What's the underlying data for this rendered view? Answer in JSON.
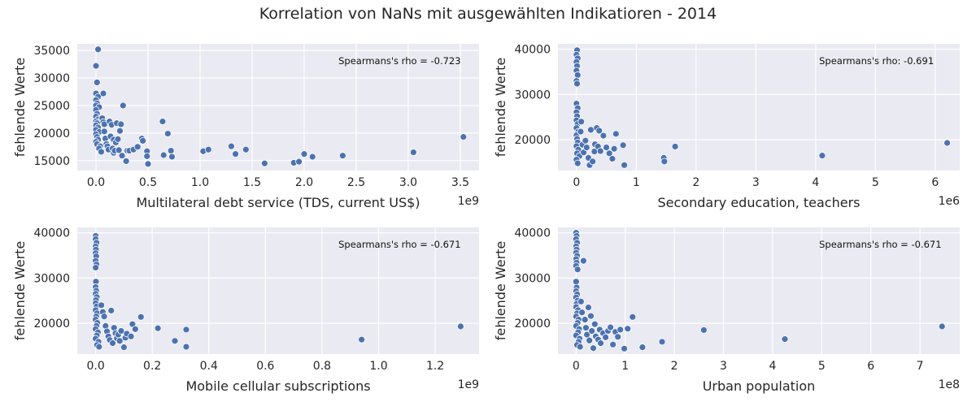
{
  "suptitle": "Korrelation von NaNs mit ausgewählten Indikatioren - 2014",
  "colors": {
    "background": "#eaeaf2",
    "grid": "#ffffff",
    "marker": "#4c72b0",
    "text": "#262626"
  },
  "chart_data": [
    {
      "type": "scatter",
      "title": "",
      "xlabel": "Multilateral debt service (TDS, current US$)",
      "ylabel": "fehlende Werte",
      "x_offset_label": "1e9",
      "annotation": "Spearmans's rho = -0.723",
      "xlim": [
        -0.18,
        3.68
      ],
      "ylim": [
        13200,
        36200
      ],
      "xticks": [
        0.0,
        0.5,
        1.0,
        1.5,
        2.0,
        2.5,
        3.0,
        3.5
      ],
      "xtick_labels": [
        "0.0",
        "0.5",
        "1.0",
        "1.5",
        "2.0",
        "2.5",
        "3.0",
        "3.5"
      ],
      "yticks": [
        15000,
        20000,
        25000,
        30000,
        35000
      ],
      "ytick_labels": [
        "15000",
        "20000",
        "25000",
        "30000",
        "35000"
      ],
      "grid": true,
      "points": [
        [
          0.02,
          35200
        ],
        [
          0.0,
          32200
        ],
        [
          0.01,
          29200
        ],
        [
          0.0,
          27200
        ],
        [
          0.02,
          26600
        ],
        [
          0.0,
          26000
        ],
        [
          0.01,
          25400
        ],
        [
          0.0,
          25000
        ],
        [
          0.03,
          24700
        ],
        [
          0.0,
          24200
        ],
        [
          0.01,
          23500
        ],
        [
          0.0,
          23000
        ],
        [
          0.02,
          22500
        ],
        [
          0.0,
          22100
        ],
        [
          0.01,
          21800
        ],
        [
          0.0,
          21400
        ],
        [
          0.02,
          21000
        ],
        [
          0.0,
          20600
        ],
        [
          0.03,
          20200
        ],
        [
          0.0,
          19800
        ],
        [
          0.01,
          19300
        ],
        [
          0.02,
          18800
        ],
        [
          0.0,
          18400
        ],
        [
          0.01,
          18000
        ],
        [
          0.04,
          17600
        ],
        [
          0.03,
          17200
        ],
        [
          0.05,
          16600
        ],
        [
          0.06,
          22700
        ],
        [
          0.07,
          22000
        ],
        [
          0.08,
          21600
        ],
        [
          0.08,
          20300
        ],
        [
          0.09,
          19000
        ],
        [
          0.1,
          18000
        ],
        [
          0.11,
          17600
        ],
        [
          0.12,
          17000
        ],
        [
          0.13,
          22100
        ],
        [
          0.14,
          19400
        ],
        [
          0.15,
          21500
        ],
        [
          0.16,
          17200
        ],
        [
          0.17,
          16400
        ],
        [
          0.17,
          18800
        ],
        [
          0.18,
          16800
        ],
        [
          0.19,
          18300
        ],
        [
          0.2,
          21800
        ],
        [
          0.21,
          18900
        ],
        [
          0.22,
          16900
        ],
        [
          0.23,
          20400
        ],
        [
          0.24,
          21600
        ],
        [
          0.25,
          15900
        ],
        [
          0.26,
          25000
        ],
        [
          0.07,
          27200
        ],
        [
          0.3,
          16800
        ],
        [
          0.32,
          16800
        ],
        [
          0.29,
          14900
        ],
        [
          0.36,
          17000
        ],
        [
          0.4,
          17500
        ],
        [
          0.44,
          19000
        ],
        [
          0.45,
          18600
        ],
        [
          0.49,
          16700
        ],
        [
          0.49,
          15800
        ],
        [
          0.5,
          14400
        ],
        [
          0.64,
          22100
        ],
        [
          0.65,
          16000
        ],
        [
          0.69,
          19900
        ],
        [
          0.72,
          16800
        ],
        [
          0.73,
          15700
        ],
        [
          1.03,
          16700
        ],
        [
          1.08,
          17000
        ],
        [
          1.3,
          17600
        ],
        [
          1.34,
          16200
        ],
        [
          1.44,
          17000
        ],
        [
          1.62,
          14500
        ],
        [
          1.9,
          14600
        ],
        [
          1.95,
          14800
        ],
        [
          2.0,
          16200
        ],
        [
          2.08,
          15700
        ],
        [
          2.37,
          15900
        ],
        [
          3.05,
          16500
        ],
        [
          3.53,
          19300
        ]
      ]
    },
    {
      "type": "scatter",
      "title": "",
      "xlabel": "Secondary education, teachers",
      "ylabel": "fehlende Werte",
      "x_offset_label": "1e6",
      "annotation": "Spearmans's rho: -0.691",
      "xlim": [
        -0.31,
        6.41
      ],
      "ylim": [
        13200,
        41200
      ],
      "xticks": [
        0,
        1,
        2,
        3,
        4,
        5,
        6
      ],
      "xtick_labels": [
        "0",
        "1",
        "2",
        "3",
        "4",
        "5",
        "6"
      ],
      "yticks": [
        20000,
        30000,
        40000
      ],
      "ytick_labels": [
        "20000",
        "30000",
        "40000"
      ],
      "grid": true,
      "points": [
        [
          0.01,
          39800
        ],
        [
          0.0,
          38800
        ],
        [
          0.02,
          38000
        ],
        [
          0.0,
          37200
        ],
        [
          0.01,
          36300
        ],
        [
          0.0,
          35300
        ],
        [
          0.02,
          34300
        ],
        [
          0.0,
          33000
        ],
        [
          0.01,
          32400
        ],
        [
          0.0,
          28000
        ],
        [
          0.02,
          27000
        ],
        [
          0.0,
          26100
        ],
        [
          0.01,
          25200
        ],
        [
          0.0,
          24300
        ],
        [
          0.02,
          23500
        ],
        [
          0.0,
          22600
        ],
        [
          0.03,
          21800
        ],
        [
          0.0,
          21000
        ],
        [
          0.01,
          20200
        ],
        [
          0.02,
          19400
        ],
        [
          0.0,
          18600
        ],
        [
          0.03,
          17800
        ],
        [
          0.01,
          17000
        ],
        [
          0.05,
          16400
        ],
        [
          0.0,
          15600
        ],
        [
          0.02,
          14800
        ],
        [
          0.07,
          21800
        ],
        [
          0.08,
          24000
        ],
        [
          0.1,
          18900
        ],
        [
          0.12,
          17200
        ],
        [
          0.15,
          19800
        ],
        [
          0.17,
          18300
        ],
        [
          0.2,
          16000
        ],
        [
          0.22,
          14400
        ],
        [
          0.24,
          22200
        ],
        [
          0.27,
          15200
        ],
        [
          0.3,
          17400
        ],
        [
          0.31,
          19000
        ],
        [
          0.34,
          22600
        ],
        [
          0.36,
          18500
        ],
        [
          0.38,
          22000
        ],
        [
          0.4,
          17500
        ],
        [
          0.45,
          20900
        ],
        [
          0.5,
          18300
        ],
        [
          0.55,
          17000
        ],
        [
          0.6,
          15800
        ],
        [
          0.63,
          18000
        ],
        [
          0.66,
          21300
        ],
        [
          0.78,
          18800
        ],
        [
          0.8,
          14400
        ],
        [
          1.46,
          16000
        ],
        [
          1.47,
          15200
        ],
        [
          1.65,
          18500
        ],
        [
          4.11,
          16500
        ],
        [
          6.2,
          19300
        ]
      ]
    },
    {
      "type": "scatter",
      "title": "",
      "xlabel": "Mobile cellular subscriptions",
      "ylabel": "fehlende Werte",
      "x_offset_label": "1e9",
      "annotation": "Spearmans's rho = -0.671",
      "xlim": [
        -0.065,
        1.355
      ],
      "ylim": [
        13200,
        41200
      ],
      "xticks": [
        0.0,
        0.2,
        0.4,
        0.6,
        0.8,
        1.0,
        1.2
      ],
      "xtick_labels": [
        "0.0",
        "0.2",
        "0.4",
        "0.6",
        "0.8",
        "1.0",
        "1.2"
      ],
      "yticks": [
        20000,
        30000,
        40000
      ],
      "ytick_labels": [
        "20000",
        "30000",
        "40000"
      ],
      "grid": true,
      "points": [
        [
          0.0,
          39300
        ],
        [
          0.0,
          38600
        ],
        [
          0.003,
          37800
        ],
        [
          0.0,
          37000
        ],
        [
          0.001,
          36300
        ],
        [
          0.0,
          35500
        ],
        [
          0.002,
          34800
        ],
        [
          0.0,
          33800
        ],
        [
          0.003,
          33000
        ],
        [
          0.0,
          32300
        ],
        [
          0.001,
          29200
        ],
        [
          0.0,
          28000
        ],
        [
          0.002,
          27200
        ],
        [
          0.0,
          26500
        ],
        [
          0.004,
          25800
        ],
        [
          0.001,
          25100
        ],
        [
          0.0,
          24400
        ],
        [
          0.003,
          23700
        ],
        [
          0.0,
          22900
        ],
        [
          0.005,
          22200
        ],
        [
          0.002,
          21500
        ],
        [
          0.0,
          20800
        ],
        [
          0.006,
          20100
        ],
        [
          0.003,
          19400
        ],
        [
          0.0,
          18700
        ],
        [
          0.008,
          18000
        ],
        [
          0.004,
          17300
        ],
        [
          0.0,
          16600
        ],
        [
          0.01,
          15900
        ],
        [
          0.005,
          15200
        ],
        [
          0.012,
          14800
        ],
        [
          0.02,
          24000
        ],
        [
          0.025,
          22500
        ],
        [
          0.03,
          21500
        ],
        [
          0.035,
          19400
        ],
        [
          0.04,
          18200
        ],
        [
          0.045,
          17100
        ],
        [
          0.05,
          16300
        ],
        [
          0.055,
          22800
        ],
        [
          0.06,
          15600
        ],
        [
          0.065,
          19000
        ],
        [
          0.07,
          17800
        ],
        [
          0.075,
          16700
        ],
        [
          0.08,
          17500
        ],
        [
          0.085,
          16100
        ],
        [
          0.09,
          18300
        ],
        [
          0.1,
          14700
        ],
        [
          0.105,
          16800
        ],
        [
          0.11,
          17700
        ],
        [
          0.125,
          17100
        ],
        [
          0.13,
          19800
        ],
        [
          0.14,
          18700
        ],
        [
          0.16,
          21400
        ],
        [
          0.22,
          18900
        ],
        [
          0.28,
          16100
        ],
        [
          0.32,
          14800
        ],
        [
          0.32,
          18600
        ],
        [
          0.94,
          16400
        ],
        [
          1.29,
          19300
        ]
      ]
    },
    {
      "type": "scatter",
      "title": "",
      "xlabel": "Urban population",
      "ylabel": "fehlende Werte",
      "x_offset_label": "1e8",
      "annotation": "Spearmans's rho = -0.671",
      "xlim": [
        -0.37,
        7.81
      ],
      "ylim": [
        13200,
        41200
      ],
      "xticks": [
        0,
        1,
        2,
        3,
        4,
        5,
        6,
        7
      ],
      "xtick_labels": [
        "0",
        "1",
        "2",
        "3",
        "4",
        "5",
        "6",
        "7"
      ],
      "yticks": [
        20000,
        30000,
        40000
      ],
      "ytick_labels": [
        "20000",
        "30000",
        "40000"
      ],
      "grid": true,
      "points": [
        [
          0.0,
          40000
        ],
        [
          0.01,
          39300
        ],
        [
          0.0,
          38600
        ],
        [
          0.02,
          37800
        ],
        [
          0.0,
          37000
        ],
        [
          0.01,
          36300
        ],
        [
          0.0,
          35600
        ],
        [
          0.02,
          34900
        ],
        [
          0.0,
          34200
        ],
        [
          0.01,
          33400
        ],
        [
          0.0,
          32700
        ],
        [
          0.03,
          31900
        ],
        [
          0.0,
          29200
        ],
        [
          0.01,
          27900
        ],
        [
          0.0,
          27100
        ],
        [
          0.02,
          26400
        ],
        [
          0.0,
          25700
        ],
        [
          0.03,
          25000
        ],
        [
          0.01,
          24300
        ],
        [
          0.0,
          23600
        ],
        [
          0.04,
          22900
        ],
        [
          0.02,
          22200
        ],
        [
          0.0,
          21500
        ],
        [
          0.05,
          20800
        ],
        [
          0.03,
          20100
        ],
        [
          0.0,
          19400
        ],
        [
          0.06,
          18700
        ],
        [
          0.04,
          18000
        ],
        [
          0.0,
          17300
        ],
        [
          0.07,
          16600
        ],
        [
          0.05,
          15900
        ],
        [
          0.02,
          15200
        ],
        [
          0.08,
          14800
        ],
        [
          0.1,
          24800
        ],
        [
          0.12,
          22400
        ],
        [
          0.15,
          33800
        ],
        [
          0.18,
          20800
        ],
        [
          0.2,
          19000
        ],
        [
          0.22,
          17500
        ],
        [
          0.25,
          23500
        ],
        [
          0.27,
          16200
        ],
        [
          0.3,
          21600
        ],
        [
          0.32,
          18300
        ],
        [
          0.35,
          14500
        ],
        [
          0.38,
          19800
        ],
        [
          0.4,
          17100
        ],
        [
          0.45,
          16400
        ],
        [
          0.48,
          18600
        ],
        [
          0.5,
          15600
        ],
        [
          0.55,
          17800
        ],
        [
          0.6,
          16900
        ],
        [
          0.65,
          18300
        ],
        [
          0.7,
          19100
        ],
        [
          0.75,
          15300
        ],
        [
          0.8,
          18100
        ],
        [
          0.85,
          17000
        ],
        [
          0.9,
          18600
        ],
        [
          0.98,
          14400
        ],
        [
          1.05,
          18800
        ],
        [
          1.15,
          21400
        ],
        [
          1.35,
          14700
        ],
        [
          1.75,
          15900
        ],
        [
          2.6,
          18500
        ],
        [
          4.25,
          16500
        ],
        [
          7.45,
          19300
        ]
      ]
    }
  ]
}
